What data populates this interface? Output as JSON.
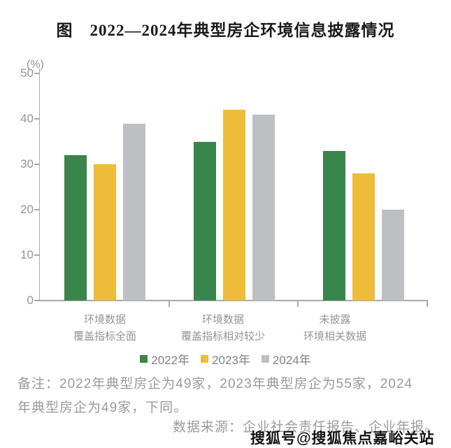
{
  "title": "图　2022—2024年典型房企环境信息披露情况",
  "chart_data": {
    "type": "bar",
    "unit_label": "(%)",
    "categories": [
      [
        "环境数据",
        "覆盖指标全面"
      ],
      [
        "环境数据",
        "覆盖指标相对较少"
      ],
      [
        "未披露",
        "环境相关数据"
      ]
    ],
    "series": [
      {
        "name": "2022年",
        "color": "#38864B",
        "values": [
          32,
          35,
          33
        ]
      },
      {
        "name": "2023年",
        "color": "#EFBB3B",
        "values": [
          30,
          42,
          28
        ]
      },
      {
        "name": "2024年",
        "color": "#BDBFC3",
        "values": [
          39,
          41,
          20
        ]
      }
    ],
    "ylim": [
      0,
      50
    ],
    "yticks": [
      0,
      10,
      20,
      30,
      40,
      50
    ],
    "grid": false,
    "legend_position": "bottom",
    "axis_color": "#A7A9AC",
    "tick_label_color": "#939598"
  },
  "footer": {
    "note_lines": [
      "备注：2022年典型房企为49家，2023年典型房企为55家，2024",
      "年典型房企为49家，下同。"
    ],
    "source": "数据来源：企业社会责任报告、企业年报。",
    "watermark": "搜狐号@搜狐焦点嘉峪关站"
  }
}
